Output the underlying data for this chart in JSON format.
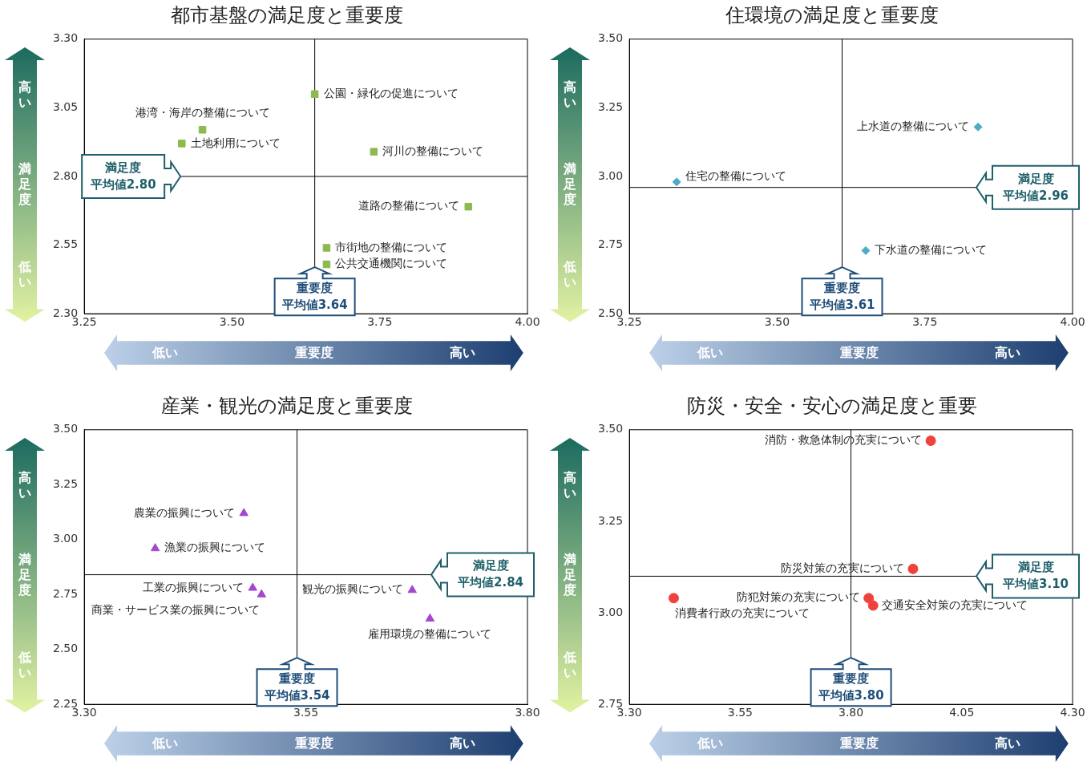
{
  "chart_data": [
    {
      "type": "scatter",
      "title": "都市基盤の満足度と重要度",
      "xlabel": "重要度",
      "ylabel": "満足度",
      "marker": "square",
      "annotations": [
        "低い",
        "高い",
        "高い",
        "低い",
        "重要度",
        "満足度"
      ],
      "xlim": [
        3.25,
        4.0
      ],
      "xticks": [
        {
          "value": 3.25,
          "label": "3.25"
        },
        {
          "value": 3.5,
          "label": "3.50"
        },
        {
          "value": 3.75,
          "label": "3.75"
        },
        {
          "value": 4.0,
          "label": "4.00"
        }
      ],
      "ylim": [
        2.3,
        3.3
      ],
      "yticks": [
        {
          "value": 2.3,
          "label": "2.30"
        },
        {
          "value": 2.55,
          "label": "2.55"
        },
        {
          "value": 2.8,
          "label": "2.80"
        },
        {
          "value": 3.05,
          "label": "3.05"
        },
        {
          "value": 3.3,
          "label": "3.30"
        }
      ],
      "ref_lines": [
        {
          "axis": "x",
          "value": 3.64,
          "label": "平均値3.64"
        },
        {
          "axis": "y",
          "value": 2.8,
          "label": "平均値2.80"
        }
      ],
      "series": [
        {
          "name": "公園・緑化の促進について",
          "color": "#8db94e",
          "x": [
            3.64
          ],
          "values": [
            3.1
          ]
        },
        {
          "name": "港湾・海岸の整備について",
          "color": "#8db94e",
          "x": [
            3.45
          ],
          "values": [
            2.97
          ]
        },
        {
          "name": "土地利用について",
          "color": "#8db94e",
          "x": [
            3.415
          ],
          "values": [
            2.92
          ]
        },
        {
          "name": "河川の整備について",
          "color": "#8db94e",
          "x": [
            3.74
          ],
          "values": [
            2.89
          ]
        },
        {
          "name": "道路の整備について",
          "color": "#8db94e",
          "x": [
            3.9
          ],
          "values": [
            2.69
          ]
        },
        {
          "name": "市街地の整備について",
          "color": "#8db94e",
          "x": [
            3.66
          ],
          "values": [
            2.54
          ]
        },
        {
          "name": "公共交通機関について",
          "color": "#8db94e",
          "x": [
            3.66
          ],
          "values": [
            2.48
          ]
        }
      ]
    },
    {
      "type": "scatter",
      "title": "住環境の満足度と重要度",
      "xlabel": "重要度",
      "ylabel": "満足度",
      "marker": "diamond",
      "annotations": [
        "低い",
        "高い",
        "高い",
        "低い",
        "重要度",
        "満足度"
      ],
      "xlim": [
        3.25,
        4.0
      ],
      "xticks": [
        {
          "value": 3.25,
          "label": "3.25"
        },
        {
          "value": 3.5,
          "label": "3.50"
        },
        {
          "value": 3.75,
          "label": "3.75"
        },
        {
          "value": 4.0,
          "label": "4.00"
        }
      ],
      "ylim": [
        2.5,
        3.5
      ],
      "yticks": [
        {
          "value": 2.5,
          "label": "2.50"
        },
        {
          "value": 2.75,
          "label": "2.75"
        },
        {
          "value": 3.0,
          "label": "3.00"
        },
        {
          "value": 3.25,
          "label": "3.25"
        },
        {
          "value": 3.5,
          "label": "3.50"
        }
      ],
      "ref_lines": [
        {
          "axis": "x",
          "value": 3.61,
          "label": "平均値3.61"
        },
        {
          "axis": "y",
          "value": 2.96,
          "label": "平均値2.96"
        }
      ],
      "series": [
        {
          "name": "上水道の整備について",
          "color": "#4bacc6",
          "x": [
            3.84
          ],
          "values": [
            3.18
          ]
        },
        {
          "name": "住宅の整備について",
          "color": "#4bacc6",
          "x": [
            3.33
          ],
          "values": [
            2.98
          ]
        },
        {
          "name": "下水道の整備について",
          "color": "#4bacc6",
          "x": [
            3.65
          ],
          "values": [
            2.73
          ]
        }
      ]
    },
    {
      "type": "scatter",
      "title": "産業・観光の満足度と重要度",
      "xlabel": "重要度",
      "ylabel": "満足度",
      "marker": "triangle",
      "annotations": [
        "低い",
        "高い",
        "高い",
        "低い",
        "重要度",
        "満足度"
      ],
      "xlim": [
        3.3,
        3.8
      ],
      "xticks": [
        {
          "value": 3.3,
          "label": "3.30"
        },
        {
          "value": 3.55,
          "label": "3.55"
        },
        {
          "value": 3.8,
          "label": "3.80"
        }
      ],
      "ylim": [
        2.25,
        3.5
      ],
      "yticks": [
        {
          "value": 2.25,
          "label": "2.25"
        },
        {
          "value": 2.5,
          "label": "2.50"
        },
        {
          "value": 2.75,
          "label": "2.75"
        },
        {
          "value": 3.0,
          "label": "3.00"
        },
        {
          "value": 3.25,
          "label": "3.25"
        },
        {
          "value": 3.5,
          "label": "3.50"
        }
      ],
      "ref_lines": [
        {
          "axis": "x",
          "value": 3.54,
          "label": "平均値3.54"
        },
        {
          "axis": "y",
          "value": 2.84,
          "label": "平均値2.84"
        }
      ],
      "series": [
        {
          "name": "農業の振興について",
          "color": "#a347d1",
          "x": [
            3.48
          ],
          "values": [
            3.12
          ]
        },
        {
          "name": "漁業の振興について",
          "color": "#a347d1",
          "x": [
            3.38
          ],
          "values": [
            2.96
          ]
        },
        {
          "name": "工業の振興について",
          "color": "#a347d1",
          "x": [
            3.49
          ],
          "values": [
            2.78
          ]
        },
        {
          "name": "商業・サービス業の振興について",
          "color": "#a347d1",
          "x": [
            3.5
          ],
          "values": [
            2.75
          ]
        },
        {
          "name": "観光の振興について",
          "color": "#a347d1",
          "x": [
            3.67
          ],
          "values": [
            2.77
          ]
        },
        {
          "name": "雇用環境の整備について",
          "color": "#a347d1",
          "x": [
            3.69
          ],
          "values": [
            2.64
          ]
        }
      ]
    },
    {
      "type": "scatter",
      "title": "防災・安全・安心の満足度と重要",
      "xlabel": "重要度",
      "ylabel": "満足度",
      "marker": "circle",
      "annotations": [
        "低い",
        "高い",
        "高い",
        "低い",
        "重要度",
        "満足度"
      ],
      "xlim": [
        3.3,
        4.3
      ],
      "xticks": [
        {
          "value": 3.3,
          "label": "3.30"
        },
        {
          "value": 3.55,
          "label": "3.55"
        },
        {
          "value": 3.8,
          "label": "3.80"
        },
        {
          "value": 4.05,
          "label": "4.05"
        },
        {
          "value": 4.3,
          "label": "4.30"
        }
      ],
      "ylim": [
        2.75,
        3.5
      ],
      "yticks": [
        {
          "value": 2.75,
          "label": "2.75"
        },
        {
          "value": 3.0,
          "label": "3.00"
        },
        {
          "value": 3.25,
          "label": "3.25"
        },
        {
          "value": 3.5,
          "label": "3.50"
        }
      ],
      "ref_lines": [
        {
          "axis": "x",
          "value": 3.8,
          "label": "平均値3.80"
        },
        {
          "axis": "y",
          "value": 3.1,
          "label": "平均値3.10"
        }
      ],
      "series": [
        {
          "name": "消防・救急体制の充実について",
          "color": "#f0423c",
          "x": [
            3.98
          ],
          "values": [
            3.47
          ]
        },
        {
          "name": "防災対策の充実について",
          "color": "#f0423c",
          "x": [
            3.94
          ],
          "values": [
            3.12
          ]
        },
        {
          "name": "防犯対策の充実について",
          "color": "#f0423c",
          "x": [
            3.84
          ],
          "values": [
            3.04
          ]
        },
        {
          "name": "交通安全対策の充実について",
          "color": "#f0423c",
          "x": [
            3.85
          ],
          "values": [
            3.02
          ]
        },
        {
          "name": "消費者行政の充実について",
          "color": "#f0423c",
          "x": [
            3.4
          ],
          "values": [
            3.04
          ]
        }
      ]
    }
  ]
}
